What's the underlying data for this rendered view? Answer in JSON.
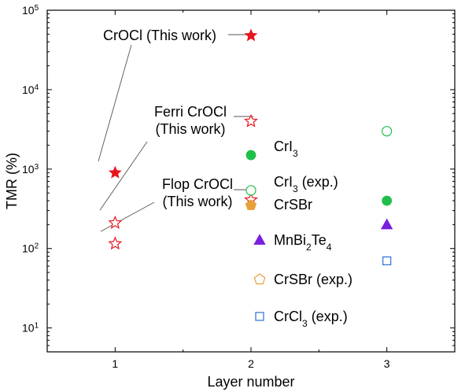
{
  "chart_data": {
    "type": "scatter",
    "xlabel": "Layer number",
    "ylabel": "TMR (%)",
    "x_ticks": [
      "1",
      "2",
      "3"
    ],
    "xlim": [
      0.5,
      3.5
    ],
    "ylim": [
      5,
      100000
    ],
    "y_scale": "log",
    "y_ticks": [
      {
        "base": "10",
        "exp": "1",
        "value": 10
      },
      {
        "base": "10",
        "exp": "2",
        "value": 100
      },
      {
        "base": "10",
        "exp": "3",
        "value": 1000
      },
      {
        "base": "10",
        "exp": "4",
        "value": 10000
      },
      {
        "base": "10",
        "exp": "5",
        "value": 100000
      }
    ],
    "grid": false,
    "series": [
      {
        "key": "crocl",
        "marker": "star-filled",
        "color": "#e8141c",
        "points": [
          {
            "x": 1,
            "y": 900
          },
          {
            "x": 2,
            "y": 48000
          }
        ]
      },
      {
        "key": "ferri",
        "marker": "star-open",
        "color": "#e8141c",
        "points": [
          {
            "x": 1,
            "y": 210
          },
          {
            "x": 2,
            "y": 4000
          }
        ]
      },
      {
        "key": "flop",
        "marker": "star-open",
        "color": "#e8141c",
        "points": [
          {
            "x": 1,
            "y": 115
          },
          {
            "x": 2,
            "y": 410
          }
        ]
      },
      {
        "key": "cri3",
        "marker": "circle-filled",
        "color": "#1fbf4a",
        "points": [
          {
            "x": 2,
            "y": 1500
          },
          {
            "x": 3,
            "y": 400
          }
        ]
      },
      {
        "key": "cri3exp",
        "marker": "circle-open",
        "color": "#1fbf4a",
        "points": [
          {
            "x": 2,
            "y": 540
          },
          {
            "x": 3,
            "y": 3000
          }
        ]
      },
      {
        "key": "crsbr",
        "marker": "pentagon-filled",
        "color": "#e8a03a",
        "points": [
          {
            "x": 2,
            "y": 350
          }
        ]
      },
      {
        "key": "mnbi2te4",
        "marker": "triangle-filled",
        "color": "#7a1ee0",
        "points": [
          {
            "x": 3,
            "y": 200
          }
        ]
      },
      {
        "key": "crcl3exp",
        "marker": "square-open",
        "color": "#2a6fd6",
        "points": [
          {
            "x": 3,
            "y": 70
          }
        ]
      }
    ],
    "legend": [
      {
        "key": "cri3",
        "parts": [
          {
            "t": "CrI"
          },
          {
            "t": "3",
            "s": "sub"
          }
        ]
      },
      {
        "key": "cri3exp",
        "parts": [
          {
            "t": "CrI"
          },
          {
            "t": "3",
            "s": "sub"
          },
          {
            "t": " (exp.)"
          }
        ]
      },
      {
        "key": "crsbr",
        "parts": [
          {
            "t": "CrSBr"
          }
        ]
      },
      {
        "key": "mnbi2te4",
        "parts": [
          {
            "t": "MnBi"
          },
          {
            "t": "2",
            "s": "sub"
          },
          {
            "t": "Te"
          },
          {
            "t": "4",
            "s": "sub"
          }
        ]
      },
      {
        "key": "crsbrexp",
        "marker": "pentagon-open",
        "color": "#e8a03a",
        "parts": [
          {
            "t": "CrSBr (exp.)"
          }
        ]
      },
      {
        "key": "crcl3exp",
        "parts": [
          {
            "t": "CrCl"
          },
          {
            "t": "3",
            "s": "sub"
          },
          {
            "t": " (exp.)"
          }
        ]
      }
    ],
    "annotations": [
      {
        "key": "crocl",
        "lines": [
          "CrOCl (This work)"
        ]
      },
      {
        "key": "ferri",
        "lines": [
          "Ferri CrOCl",
          "(This work)"
        ]
      },
      {
        "key": "flop",
        "lines": [
          "Flop CrOCl",
          "(This work)"
        ]
      }
    ]
  }
}
